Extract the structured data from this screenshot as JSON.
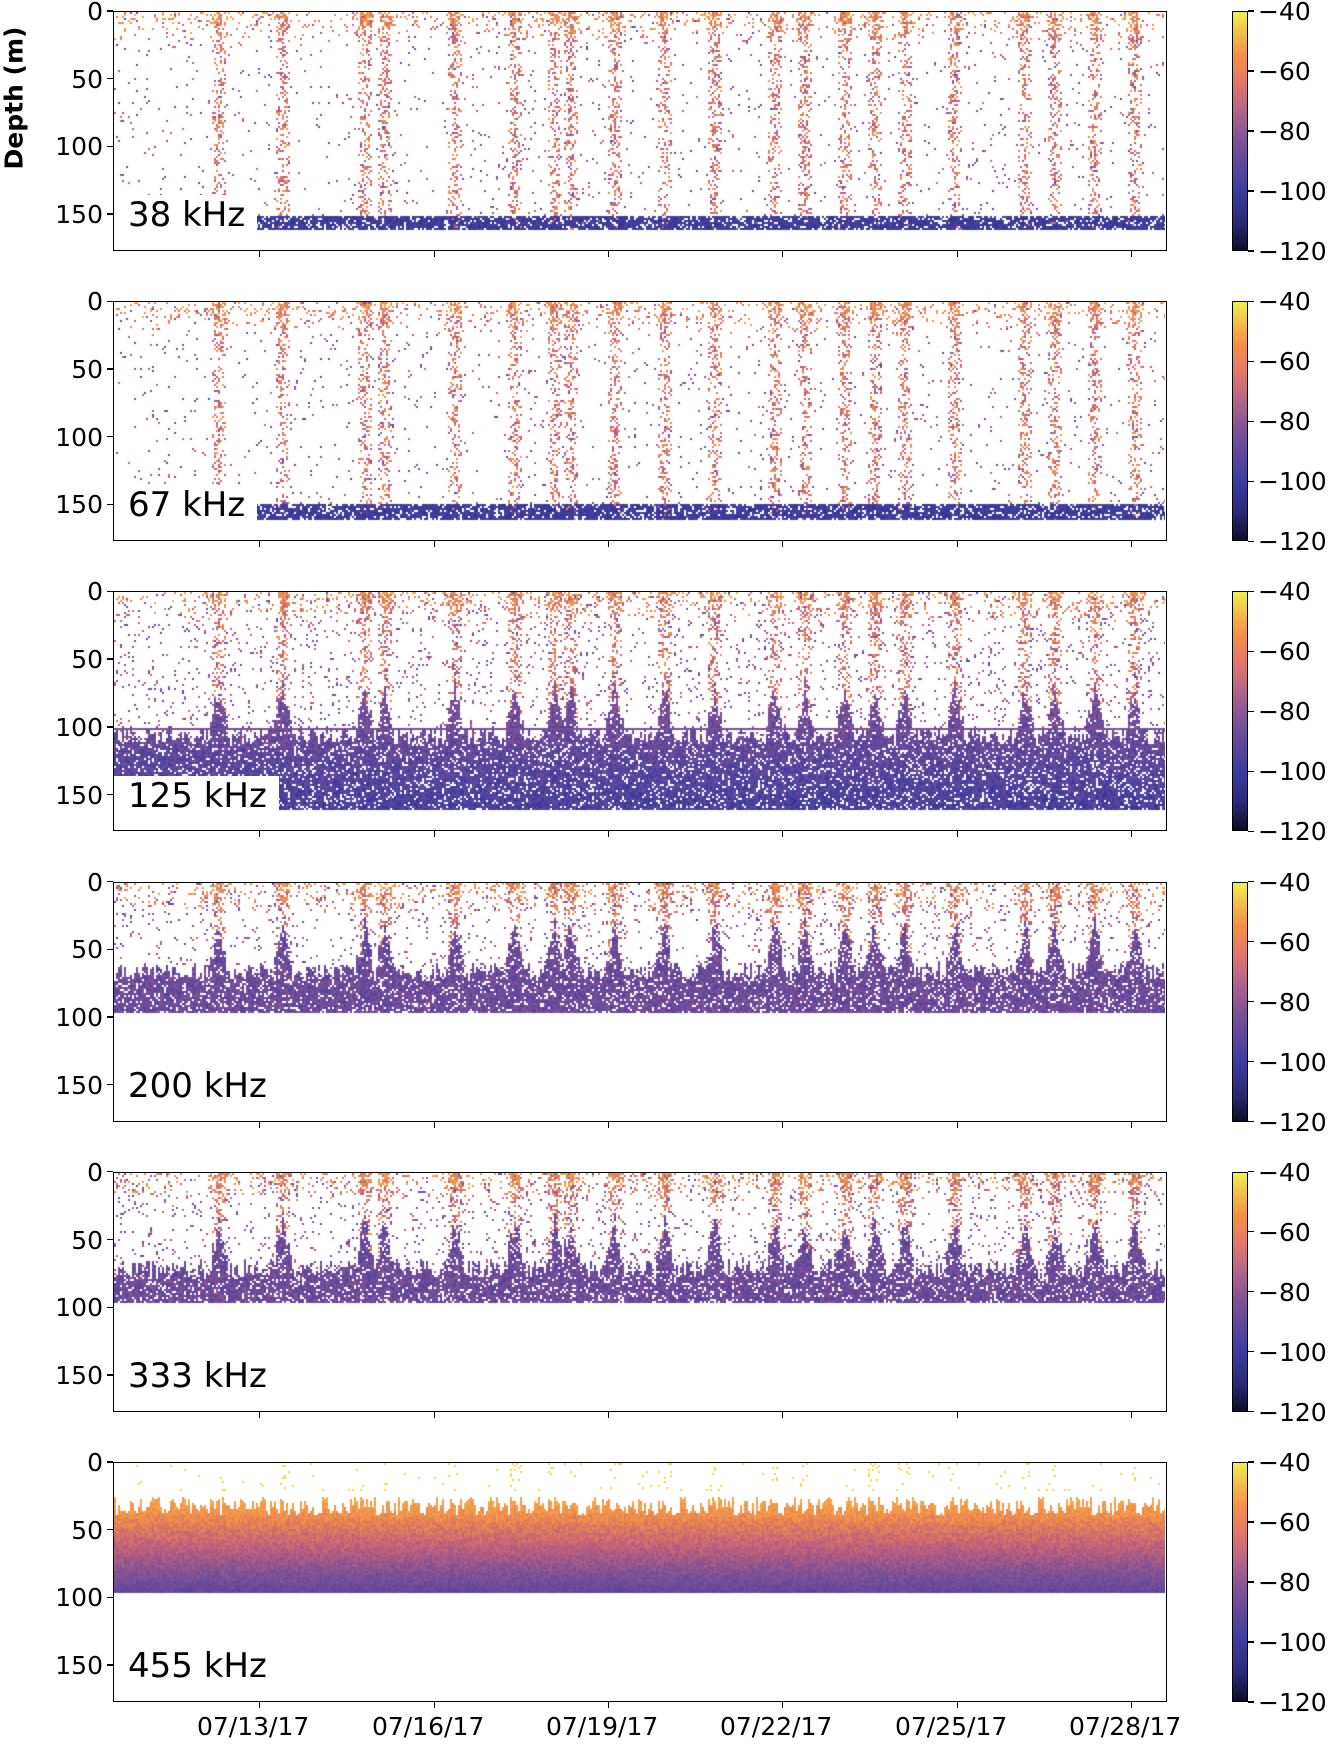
{
  "chart_data": {
    "type": "heatmap",
    "ylabel": "Depth (m)",
    "ylim": [
      175,
      0
    ],
    "yticks": [
      "0",
      "50",
      "100",
      "150"
    ],
    "xlim": [
      "07/10/17 12:00",
      "07/28/17 15:00"
    ],
    "xticks": [
      "07/13/17",
      "07/16/17",
      "07/19/17",
      "07/22/17",
      "07/25/17",
      "07/28/17"
    ],
    "colorbar": {
      "range": [
        -120,
        -40
      ],
      "ticks": [
        "−40",
        "−60",
        "−80",
        "−100",
        "−120"
      ],
      "colormap": [
        "#0d0d25",
        "#3c3ca0",
        "#7a5098",
        "#e2766a",
        "#f39048",
        "#eef055"
      ]
    },
    "panels": [
      {
        "label": "38 kHz",
        "kind": "sparse",
        "max_depth_m": 160,
        "bottom_band_m": [
          150,
          160
        ]
      },
      {
        "label": "67 kHz",
        "kind": "sparse",
        "max_depth_m": 160,
        "bottom_band_m": [
          148,
          160
        ]
      },
      {
        "label": "125 kHz",
        "kind": "deep",
        "max_depth_m": 160,
        "dense_from_m": 105,
        "line_m": 100
      },
      {
        "label": "200 kHz",
        "kind": "mid",
        "max_depth_m": 95,
        "dense_from_m": 65
      },
      {
        "label": "333 kHz",
        "kind": "mid",
        "max_depth_m": 95,
        "dense_from_m": 70
      },
      {
        "label": "455 kHz",
        "kind": "solid",
        "max_depth_m": 95,
        "dense_from_m": 33
      }
    ]
  }
}
